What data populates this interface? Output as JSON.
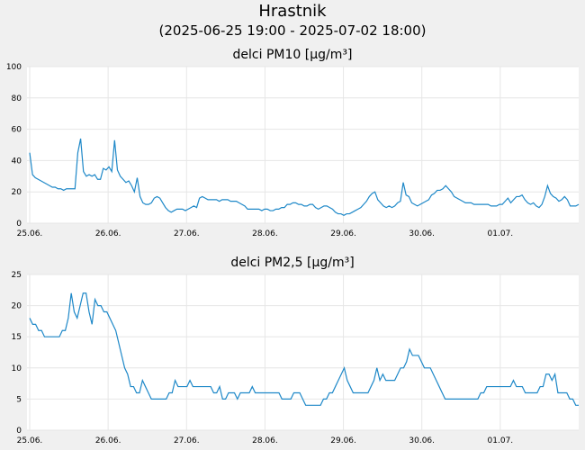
{
  "title": "Hrastnik",
  "subtitle": "(2025-06-25 19:00 - 2025-07-02 18:00)",
  "colors": {
    "line": "#1e88c8",
    "grid": "#e6e6e6",
    "plot_bg": "#ffffff",
    "page_bg": "#f0f0f0"
  },
  "chart_data": [
    {
      "type": "line",
      "title": "delci PM10 [µg/m³]",
      "xlabel": "",
      "ylabel": "",
      "ylim": [
        0,
        100
      ],
      "y_ticks": [
        0,
        20,
        40,
        60,
        80,
        100
      ],
      "x_ticks": [
        "25.06.",
        "26.06.",
        "27.06.",
        "28.06.",
        "29.06.",
        "30.06.",
        "01.07."
      ],
      "grid": true,
      "series": [
        {
          "values": [
            45,
            31,
            29,
            28,
            27,
            26,
            25,
            24,
            23,
            23,
            22,
            22,
            21,
            22,
            22,
            22,
            22,
            45,
            54,
            33,
            30,
            31,
            30,
            31,
            28,
            28,
            35,
            34,
            36,
            33,
            53,
            34,
            30,
            28,
            26,
            27,
            24,
            20,
            29,
            17,
            13,
            12,
            12,
            13,
            16,
            17,
            16,
            13,
            10,
            8,
            7,
            8,
            9,
            9,
            9,
            8,
            9,
            10,
            11,
            10,
            16,
            17,
            16,
            15,
            15,
            15,
            15,
            14,
            15,
            15,
            15,
            14,
            14,
            14,
            13,
            12,
            11,
            9,
            9,
            9,
            9,
            9,
            8,
            9,
            9,
            8,
            8,
            9,
            9,
            10,
            10,
            12,
            12,
            13,
            13,
            12,
            12,
            11,
            11,
            12,
            12,
            10,
            9,
            10,
            11,
            11,
            10,
            9,
            7,
            6,
            6,
            5,
            6,
            6,
            7,
            8,
            9,
            10,
            12,
            14,
            17,
            19,
            20,
            15,
            13,
            11,
            10,
            11,
            10,
            11,
            13,
            14,
            26,
            18,
            17,
            13,
            12,
            11,
            12,
            13,
            14,
            15,
            18,
            19,
            21,
            21,
            22,
            24,
            22,
            20,
            17,
            16,
            15,
            14,
            13,
            13,
            13,
            12,
            12,
            12,
            12,
            12,
            12,
            11,
            11,
            11,
            12,
            12,
            14,
            16,
            13,
            15,
            17,
            17,
            18,
            15,
            13,
            12,
            13,
            11,
            10,
            12,
            17,
            24,
            19,
            17,
            16,
            14,
            15,
            17,
            15,
            11,
            11,
            11,
            12
          ]
        }
      ]
    },
    {
      "type": "line",
      "title": "delci PM2,5 [µg/m³]",
      "xlabel": "",
      "ylabel": "",
      "ylim": [
        0,
        25
      ],
      "y_ticks": [
        0,
        5,
        10,
        15,
        20,
        25
      ],
      "x_ticks": [
        "25.06.",
        "26.06.",
        "27.06.",
        "28.06.",
        "29.06.",
        "30.06.",
        "01.07."
      ],
      "grid": true,
      "series": [
        {
          "values": [
            18,
            17,
            17,
            16,
            16,
            15,
            15,
            15,
            15,
            15,
            15,
            16,
            16,
            18,
            22,
            19,
            18,
            20,
            22,
            22,
            19,
            17,
            21,
            20,
            20,
            19,
            19,
            18,
            17,
            16,
            14,
            12,
            10,
            9,
            7,
            7,
            6,
            6,
            8,
            7,
            6,
            5,
            5,
            5,
            5,
            5,
            5,
            6,
            6,
            8,
            7,
            7,
            7,
            7,
            8,
            7,
            7,
            7,
            7,
            7,
            7,
            7,
            6,
            6,
            7,
            5,
            5,
            6,
            6,
            6,
            5,
            6,
            6,
            6,
            6,
            7,
            6,
            6,
            6,
            6,
            6,
            6,
            6,
            6,
            6,
            5,
            5,
            5,
            5,
            6,
            6,
            6,
            5,
            4,
            4,
            4,
            4,
            4,
            4,
            5,
            5,
            6,
            6,
            7,
            8,
            9,
            10,
            8,
            7,
            6,
            6,
            6,
            6,
            6,
            6,
            7,
            8,
            10,
            8,
            9,
            8,
            8,
            8,
            8,
            9,
            10,
            10,
            11,
            13,
            12,
            12,
            12,
            11,
            10,
            10,
            10,
            9,
            8,
            7,
            6,
            5,
            5,
            5,
            5,
            5,
            5,
            5,
            5,
            5,
            5,
            5,
            5,
            6,
            6,
            7,
            7,
            7,
            7,
            7,
            7,
            7,
            7,
            7,
            8,
            7,
            7,
            7,
            6,
            6,
            6,
            6,
            6,
            7,
            7,
            9,
            9,
            8,
            9,
            6,
            6,
            6,
            6,
            5,
            5,
            4,
            4
          ]
        }
      ]
    }
  ]
}
